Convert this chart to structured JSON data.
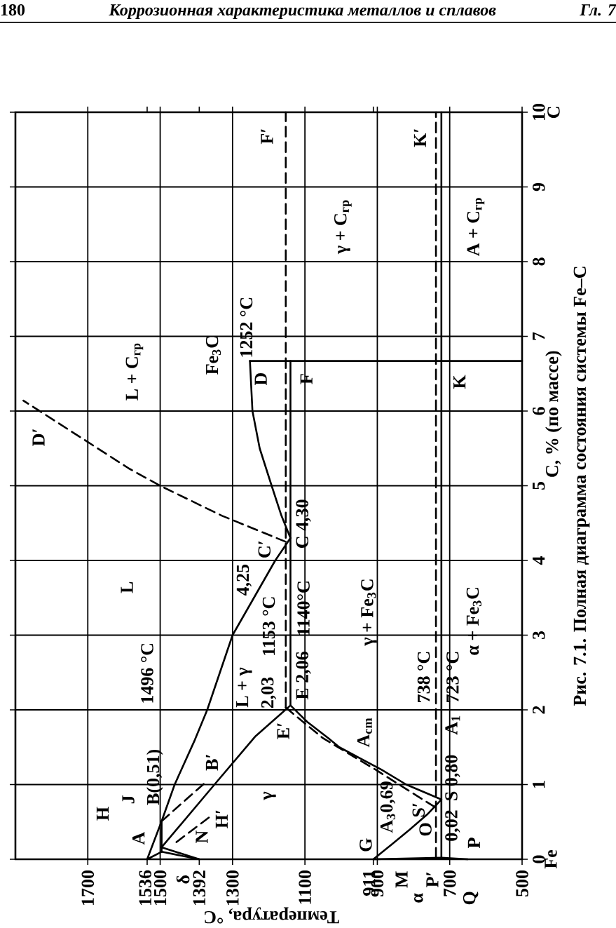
{
  "chart_data": {
    "type": "line",
    "xlabel": "Температура, °C",
    "ylabel": "C, % (по массе)",
    "xlim": [
      1900,
      500
    ],
    "ylim": [
      0,
      10
    ],
    "xticks": [
      500,
      700,
      900,
      911,
      1100,
      1300,
      1392,
      1500,
      1536,
      1700
    ],
    "yticks": [
      0,
      1,
      2,
      3,
      4,
      5,
      6,
      7,
      8,
      9,
      10
    ],
    "grid": true,
    "line_style": "solid",
    "series": [
      {
        "color": "#000000",
        "x": [
          1536,
          1496,
          1460,
          1404,
          1370,
          1300,
          1182,
          1140
        ],
        "values": [
          0,
          0.51,
          1,
          1.6,
          2,
          3,
          4,
          4.3
        ]
      },
      {
        "color": "#000000",
        "x": [
          1496,
          1350,
          1238,
          1140
        ],
        "values": [
          0.16,
          1.0,
          1.64,
          2.06
        ]
      },
      {
        "color": "#000000",
        "x": [
          1536,
          1496
        ],
        "values": [
          0,
          0.1
        ]
      },
      {
        "color": "#000000",
        "x": [
          1496,
          1496
        ],
        "values": [
          0.1,
          0.51
        ]
      },
      {
        "color": "#000000",
        "x": [
          1392,
          1496
        ],
        "values": [
          0,
          0.1
        ]
      },
      {
        "color": "#000000",
        "x": [
          1392,
          1496
        ],
        "values": [
          0,
          0.16
        ]
      },
      {
        "color": "#000000",
        "x": [
          1140,
          1140
        ],
        "values": [
          2.06,
          6.67
        ]
      },
      {
        "color": "#000000",
        "x": [
          1140,
          1165,
          1192,
          1225,
          1245,
          1252
        ],
        "values": [
          4.3,
          4.6,
          5,
          5.5,
          6,
          6.67
        ]
      },
      {
        "color": "#000000",
        "x": [
          1252,
          500
        ],
        "values": [
          6.67,
          6.67
        ]
      },
      {
        "color": "#000000",
        "x": [
          1140,
          1094,
          1035,
          1005,
          889,
          820,
          723
        ],
        "values": [
          2.06,
          1.84,
          1.62,
          1.5,
          1.2,
          1,
          0.8
        ]
      },
      {
        "color": "#000000",
        "x": [
          911,
          860,
          810,
          762,
          723
        ],
        "values": [
          0,
          0.2,
          0.4,
          0.6,
          0.8
        ]
      },
      {
        "color": "#000000",
        "x": [
          911,
          723,
          650
        ],
        "values": [
          0,
          0.02,
          0
        ]
      },
      {
        "color": "#000000",
        "x": [
          723,
          723
        ],
        "values": [
          0.02,
          10
        ]
      },
      {
        "color": "#000000",
        "line_style": "dashed",
        "x": [
          1153,
          1153
        ],
        "values": [
          2.03,
          10
        ]
      },
      {
        "color": "#000000",
        "line_style": "dashed",
        "x": [
          738,
          738
        ],
        "values": [
          0.02,
          10
        ]
      },
      {
        "color": "#000000",
        "line_style": "dashed",
        "x": [
          1153,
          1330,
          1500,
          1586,
          1878
        ],
        "values": [
          4.25,
          4.6,
          5,
          5.23,
          6.14
        ]
      },
      {
        "color": "#000000",
        "line_style": "dashed",
        "x": [
          1153,
          1050,
          905,
          840,
          738
        ],
        "values": [
          2.03,
          1.62,
          1.2,
          1,
          0.69
        ]
      },
      {
        "color": "#000000",
        "line_style": "dashed",
        "x": [
          1496,
          1370
        ],
        "values": [
          0.51,
          1.05
        ]
      },
      {
        "color": "#000000",
        "line_style": "dashed",
        "x": [
          1455,
          1365
        ],
        "values": [
          0.23,
          0.56
        ]
      }
    ],
    "annotations": [
      "180",
      "Коррозионная характеристика металлов и сплавов",
      "Гл. 7",
      "Рис. 7.1. Полная диаграмма состояния системы Fe–C",
      "Fe",
      "C",
      "A",
      "H",
      "J",
      "B(0,51)",
      "N",
      "H′",
      "B′",
      "γ",
      "G",
      "A$_{3}$0,69",
      "O",
      "S′",
      "0,02",
      "P",
      "S 0,80",
      "A$_{1}$",
      "723 °C",
      "738 °C",
      "α + Fe$_{3}$C",
      "γ + Fe$_{3}$C",
      "A$_{cm}$",
      "E′",
      "L + γ",
      "2,03",
      "1153 °C",
      "E 2,06",
      "1140°C",
      "C 4,30",
      "4,25",
      "C′",
      "L",
      "1496 °C",
      "D′",
      "L + C$_{гр}$",
      "Fe$_{3}$C",
      "1252 °C",
      "D",
      "F",
      "F′",
      "γ + C$_{гр}$",
      "K′",
      "A + C$_{гр}$",
      "K",
      "δ",
      "M",
      "α",
      "P′",
      "Q"
    ]
  }
}
